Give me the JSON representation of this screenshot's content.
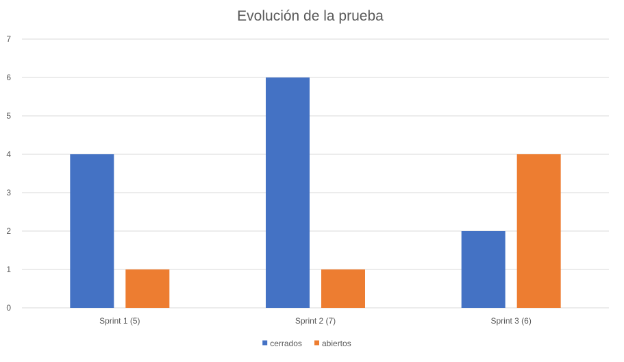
{
  "chart_data": {
    "type": "bar",
    "title": "Evolución de la prueba",
    "categories": [
      "Sprint 1 (5)",
      "Sprint 2 (7)",
      "Sprint 3 (6)"
    ],
    "series": [
      {
        "name": "cerrados",
        "values": [
          4,
          6,
          2
        ],
        "color": "#4472c4"
      },
      {
        "name": "abiertos",
        "values": [
          1,
          1,
          4
        ],
        "color": "#ed7d31"
      }
    ],
    "ylim": [
      0,
      7
    ],
    "yticks": [
      0,
      1,
      2,
      3,
      4,
      5,
      6,
      7
    ],
    "grid": true,
    "legend": "bottom"
  }
}
